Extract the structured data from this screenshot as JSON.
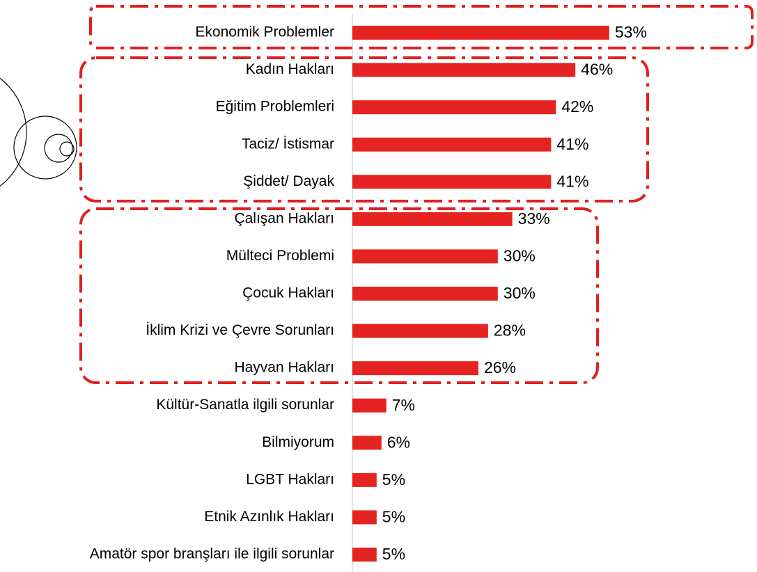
{
  "chart_data": {
    "type": "bar",
    "orientation": "horizontal",
    "categories": [
      "Ekonomik Problemler",
      "Kadın Hakları",
      "Eğitim Problemleri",
      "Taciz/ İstismar",
      "Şiddet/ Dayak",
      "Çalışan Hakları",
      "Mülteci Problemi",
      "Çocuk Hakları",
      "İklim Krizi ve Çevre Sorunları",
      "Hayvan Hakları",
      "Kültür-Sanatla ilgili sorunlar",
      "Bilmiyorum",
      "LGBT Hakları",
      "Etnik Azınlık Hakları",
      "Amatör spor branşları ile ilgili sorunlar"
    ],
    "values": [
      53,
      46,
      42,
      41,
      41,
      33,
      30,
      30,
      28,
      26,
      7,
      6,
      5,
      5,
      5
    ],
    "value_labels": [
      "53%",
      "46%",
      "42%",
      "41%",
      "41%",
      "33%",
      "30%",
      "30%",
      "28%",
      "26%",
      "7%",
      "6%",
      "5%",
      "5%",
      "5%"
    ],
    "color": "#e52421",
    "xlim": [
      0,
      60
    ]
  }
}
